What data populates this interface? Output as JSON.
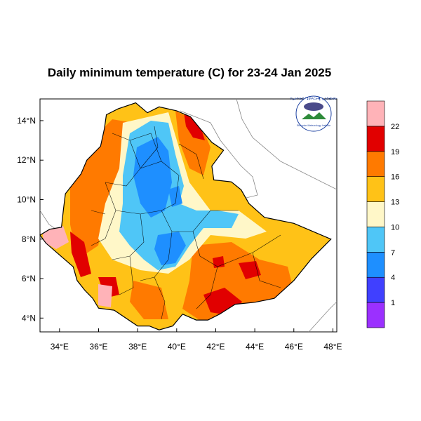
{
  "title": "Daily minimum temperature (C) for 23-24 Jan 2025",
  "logo": {
    "text_top": "የኢትዮጵያ ሜቲዎሮሎጂ ኢንስቲትዩት",
    "text_bottom": "Ethiopian Meteorology Institute"
  },
  "map": {
    "lon_range": [
      33,
      48.2
    ],
    "lat_range": [
      3.3,
      15.1
    ],
    "x_ticks": [
      "34°E",
      "36°E",
      "38°E",
      "40°E",
      "42°E",
      "44°E",
      "46°E",
      "48°E"
    ],
    "y_ticks": [
      "14°N",
      "12°N",
      "10°N",
      "8°N",
      "6°N",
      "4°N"
    ]
  },
  "legend": {
    "colors": [
      "#9b30ff",
      "#4040ff",
      "#1e8fff",
      "#4fc6f7",
      "#fff7c8",
      "#ffc217",
      "#ff7a00",
      "#e10000",
      "#ffb3b8"
    ],
    "labels": [
      "1",
      "4",
      "7",
      "10",
      "13",
      "16",
      "19",
      "22"
    ]
  },
  "colors": {
    "ocean": "#ffffff",
    "land_outside": "#ffffff",
    "borders": "#000000"
  }
}
